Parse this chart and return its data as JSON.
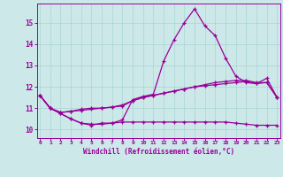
{
  "xlabel": "Windchill (Refroidissement éolien,°C)",
  "background_color": "#cce8e8",
  "line_color": "#990099",
  "grid_color": "#aad4d4",
  "x_ticks": [
    0,
    1,
    2,
    3,
    4,
    5,
    6,
    7,
    8,
    9,
    10,
    11,
    12,
    13,
    14,
    15,
    16,
    17,
    18,
    19,
    20,
    21,
    22,
    23
  ],
  "y_ticks": [
    10,
    11,
    12,
    13,
    14,
    15
  ],
  "ylim": [
    9.6,
    15.9
  ],
  "xlim": [
    -0.3,
    23.3
  ],
  "series1_x": [
    0,
    1,
    2,
    3,
    4,
    5,
    6,
    7,
    8,
    9,
    10,
    11,
    12,
    13,
    14,
    15,
    16,
    17,
    18,
    19,
    20,
    21,
    22,
    23
  ],
  "series1_y": [
    11.6,
    11.0,
    10.75,
    10.5,
    10.3,
    10.2,
    10.3,
    10.3,
    10.45,
    11.4,
    11.55,
    11.65,
    13.2,
    14.2,
    15.0,
    15.65,
    14.85,
    14.4,
    13.35,
    12.5,
    12.2,
    12.15,
    12.4,
    11.5
  ],
  "series2_x": [
    0,
    1,
    2,
    3,
    4,
    5,
    6,
    7,
    8,
    9,
    10,
    11,
    12,
    13,
    14,
    15,
    16,
    17,
    18,
    19,
    20,
    21,
    22,
    23
  ],
  "series2_y": [
    11.6,
    11.0,
    10.75,
    10.5,
    10.3,
    10.25,
    10.25,
    10.3,
    10.35,
    10.35,
    10.35,
    10.35,
    10.35,
    10.35,
    10.35,
    10.35,
    10.35,
    10.35,
    10.35,
    10.3,
    10.25,
    10.2,
    10.2,
    10.2
  ],
  "series3_x": [
    0,
    1,
    2,
    3,
    4,
    5,
    6,
    7,
    8,
    9,
    10,
    11,
    12,
    13,
    14,
    15,
    16,
    17,
    18,
    19,
    20,
    21,
    22,
    23
  ],
  "series3_y": [
    11.6,
    11.0,
    10.8,
    10.85,
    10.9,
    10.95,
    11.0,
    11.05,
    11.1,
    11.35,
    11.5,
    11.6,
    11.7,
    11.8,
    11.9,
    12.0,
    12.05,
    12.1,
    12.15,
    12.2,
    12.25,
    12.15,
    12.2,
    11.5
  ],
  "series4_x": [
    0,
    1,
    2,
    3,
    4,
    5,
    6,
    7,
    8,
    9,
    10,
    11,
    12,
    13,
    14,
    15,
    16,
    17,
    18,
    19,
    20,
    21,
    22,
    23
  ],
  "series4_y": [
    11.6,
    11.0,
    10.8,
    10.85,
    10.95,
    11.0,
    11.0,
    11.05,
    11.15,
    11.35,
    11.5,
    11.6,
    11.7,
    11.8,
    11.9,
    12.0,
    12.1,
    12.2,
    12.25,
    12.3,
    12.3,
    12.2,
    12.2,
    11.5
  ]
}
